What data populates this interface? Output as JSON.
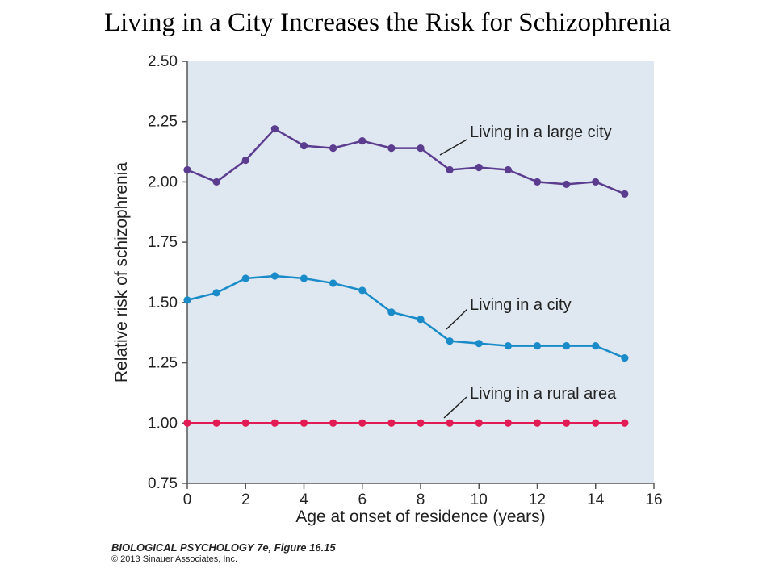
{
  "slide": {
    "title": "Living in a City Increases the Risk for Schizophrenia",
    "credit_book": "BIOLOGICAL PSYCHOLOGY 7e, Figure 16.15",
    "credit_copyright": "© 2013 Sinauer Associates, Inc."
  },
  "chart_data": {
    "type": "line",
    "title": "Living in a City Increases the Risk for Schizophrenia",
    "xlabel": "Age at onset of residence (years)",
    "ylabel": "Relative risk of schizophrenia",
    "xlim": [
      0,
      16
    ],
    "ylim": [
      0.75,
      2.5
    ],
    "x_ticks": [
      0,
      2,
      4,
      6,
      8,
      10,
      12,
      14,
      16
    ],
    "y_ticks": [
      "0.75",
      "1.00",
      "1.25",
      "1.50",
      "1.75",
      "2.00",
      "2.25",
      "2.50"
    ],
    "grid": false,
    "plot_background": "#dfe8f0",
    "x": [
      0,
      1,
      2,
      3,
      4,
      5,
      6,
      7,
      8,
      9,
      10,
      11,
      12,
      13,
      14,
      15
    ],
    "series": [
      {
        "name": "Living in a large city",
        "color": "#5b3c8f",
        "values": [
          2.05,
          2.0,
          2.09,
          2.22,
          2.15,
          2.14,
          2.17,
          2.14,
          2.14,
          2.05,
          2.06,
          2.05,
          2.0,
          1.99,
          2.0,
          1.95
        ]
      },
      {
        "name": "Living in a city",
        "color": "#1a8bc9",
        "values": [
          1.51,
          1.54,
          1.6,
          1.61,
          1.6,
          1.58,
          1.55,
          1.46,
          1.43,
          1.34,
          1.33,
          1.32,
          1.32,
          1.32,
          1.32,
          1.27
        ]
      },
      {
        "name": "Living in a rural area",
        "color": "#e31b54",
        "values": [
          1.0,
          1.0,
          1.0,
          1.0,
          1.0,
          1.0,
          1.0,
          1.0,
          1.0,
          1.0,
          1.0,
          1.0,
          1.0,
          1.0,
          1.0,
          1.0
        ]
      }
    ]
  }
}
